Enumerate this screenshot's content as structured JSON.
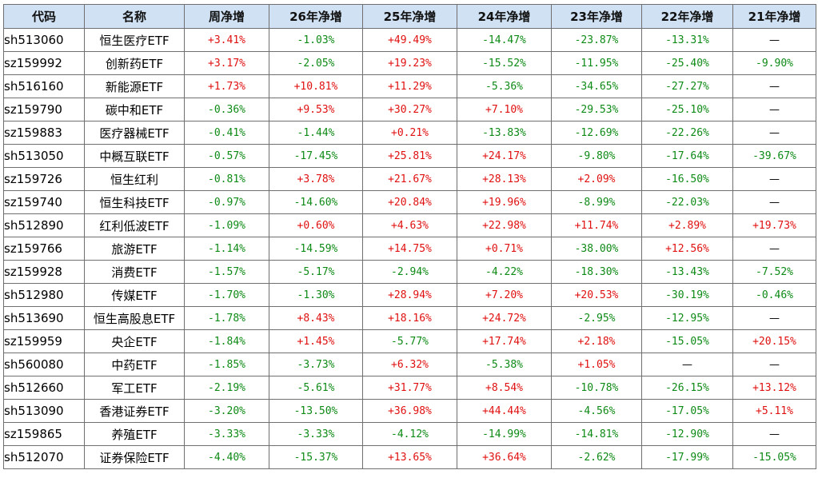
{
  "colors": {
    "header_bg": "#cfe1f3",
    "positive": "#e01010",
    "negative": "#0e8a16",
    "border": "#6f6f6f"
  },
  "headers": [
    "代码",
    "名称",
    "周净增",
    "26年净增",
    "25年净增",
    "24年净增",
    "23年净增",
    "22年净增",
    "21年净增"
  ],
  "rows": [
    [
      "sh513060",
      "恒生医疗ETF",
      "+3.41%",
      "-1.03%",
      "+49.49%",
      "-14.47%",
      "-23.87%",
      "-13.31%",
      "—"
    ],
    [
      "sz159992",
      "创新药ETF",
      "+3.17%",
      "-2.05%",
      "+19.23%",
      "-15.52%",
      "-11.95%",
      "-25.40%",
      "-9.90%"
    ],
    [
      "sh516160",
      "新能源ETF",
      "+1.73%",
      "+10.81%",
      "+11.29%",
      "-5.36%",
      "-34.65%",
      "-27.27%",
      "—"
    ],
    [
      "sz159790",
      "碳中和ETF",
      "-0.36%",
      "+9.53%",
      "+30.27%",
      "+7.10%",
      "-29.53%",
      "-25.10%",
      "—"
    ],
    [
      "sz159883",
      "医疗器械ETF",
      "-0.41%",
      "-1.44%",
      "+0.21%",
      "-13.83%",
      "-12.69%",
      "-22.26%",
      "—"
    ],
    [
      "sh513050",
      "中概互联ETF",
      "-0.57%",
      "-17.45%",
      "+25.81%",
      "+24.17%",
      "-9.80%",
      "-17.64%",
      "-39.67%"
    ],
    [
      "sz159726",
      "恒生红利",
      "-0.81%",
      "+3.78%",
      "+21.67%",
      "+28.13%",
      "+2.09%",
      "-16.50%",
      "—"
    ],
    [
      "sz159740",
      "恒生科技ETF",
      "-0.97%",
      "-14.60%",
      "+20.84%",
      "+19.96%",
      "-8.99%",
      "-22.03%",
      "—"
    ],
    [
      "sh512890",
      "红利低波ETF",
      "-1.09%",
      "+0.60%",
      "+4.63%",
      "+22.98%",
      "+11.74%",
      "+2.89%",
      "+19.73%"
    ],
    [
      "sz159766",
      "旅游ETF",
      "-1.14%",
      "-14.59%",
      "+14.75%",
      "+0.71%",
      "-38.00%",
      "+12.56%",
      "—"
    ],
    [
      "sz159928",
      "消费ETF",
      "-1.57%",
      "-5.17%",
      "-2.94%",
      "-4.22%",
      "-18.30%",
      "-13.43%",
      "-7.52%"
    ],
    [
      "sh512980",
      "传媒ETF",
      "-1.70%",
      "-1.30%",
      "+28.94%",
      "+7.20%",
      "+20.53%",
      "-30.19%",
      "-0.46%"
    ],
    [
      "sh513690",
      "恒生高股息ETF",
      "-1.78%",
      "+8.43%",
      "+18.16%",
      "+24.72%",
      "-2.95%",
      "-12.95%",
      "—"
    ],
    [
      "sz159959",
      "央企ETF",
      "-1.84%",
      "+1.45%",
      "-5.77%",
      "+17.74%",
      "+2.18%",
      "-15.05%",
      "+20.15%"
    ],
    [
      "sh560080",
      "中药ETF",
      "-1.85%",
      "-3.73%",
      "+6.32%",
      "-5.38%",
      "+1.05%",
      "—",
      "—"
    ],
    [
      "sh512660",
      "军工ETF",
      "-2.19%",
      "-5.61%",
      "+31.77%",
      "+8.54%",
      "-10.78%",
      "-26.15%",
      "+13.12%"
    ],
    [
      "sh513090",
      "香港证券ETF",
      "-3.20%",
      "-13.50%",
      "+36.98%",
      "+44.44%",
      "-4.56%",
      "-17.05%",
      "+5.11%"
    ],
    [
      "sz159865",
      "养殖ETF",
      "-3.33%",
      "-3.33%",
      "-4.12%",
      "-14.99%",
      "-14.81%",
      "-12.90%",
      "—"
    ],
    [
      "sh512070",
      "证券保险ETF",
      "-4.40%",
      "-15.37%",
      "+13.65%",
      "+36.64%",
      "-2.62%",
      "-17.99%",
      "-15.05%"
    ]
  ]
}
